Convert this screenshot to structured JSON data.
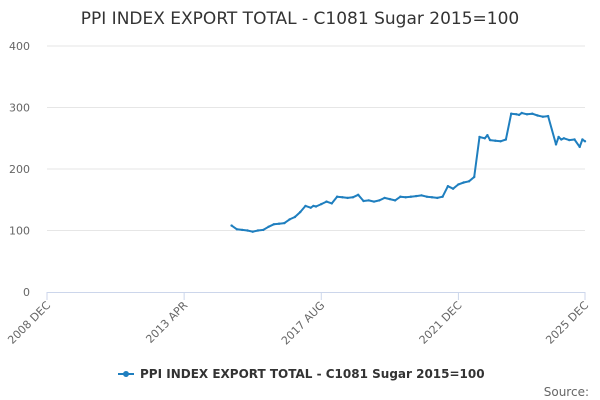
{
  "chart_data": {
    "type": "line",
    "title": "PPI INDEX EXPORT TOTAL - C1081 Sugar 2015=100",
    "xlabel": "",
    "ylabel": "",
    "ylim": [
      0,
      400
    ],
    "yticks": [
      "0",
      "100",
      "200",
      "300",
      "400"
    ],
    "xlim": [
      "2008-12",
      "2025-12"
    ],
    "xticks": [
      {
        "label": "2008 DEC",
        "date": "2008-12"
      },
      {
        "label": "2013 APR",
        "date": "2013-04"
      },
      {
        "label": "2017 AUG",
        "date": "2017-08"
      },
      {
        "label": "2021 DEC",
        "date": "2021-12"
      },
      {
        "label": "2025 DEC",
        "date": "2025-12"
      }
    ],
    "grid": true,
    "legend_position": "bottom",
    "series": [
      {
        "name": "PPI INDEX EXPORT TOTAL - C1081 Sugar 2015=100",
        "color": "#1f7fbf",
        "x": [
          "2014-10",
          "2014-12",
          "2015-02",
          "2015-04",
          "2015-06",
          "2015-08",
          "2015-10",
          "2015-12",
          "2016-02",
          "2016-04",
          "2016-06",
          "2016-08",
          "2016-10",
          "2016-12",
          "2017-02",
          "2017-04",
          "2017-05",
          "2017-06",
          "2017-08",
          "2017-10",
          "2017-12",
          "2018-02",
          "2018-04",
          "2018-06",
          "2018-08",
          "2018-10",
          "2018-12",
          "2019-02",
          "2019-04",
          "2019-06",
          "2019-08",
          "2019-10",
          "2019-12",
          "2020-02",
          "2020-04",
          "2020-06",
          "2020-08",
          "2020-10",
          "2020-12",
          "2021-02",
          "2021-04",
          "2021-06",
          "2021-08",
          "2021-10",
          "2021-12",
          "2022-02",
          "2022-04",
          "2022-06",
          "2022-08",
          "2022-10",
          "2022-11",
          "2022-12",
          "2023-02",
          "2023-04",
          "2023-06",
          "2023-08",
          "2023-10",
          "2023-11",
          "2023-12",
          "2024-02",
          "2024-04",
          "2024-06",
          "2024-08",
          "2024-10",
          "2025-01",
          "2025-02",
          "2025-03",
          "2025-04",
          "2025-06",
          "2025-08",
          "2025-10",
          "2025-11",
          "2025-12"
        ],
        "y": [
          108,
          102,
          101,
          100,
          98,
          100,
          101,
          106,
          110,
          111,
          112,
          118,
          122,
          130,
          140,
          137,
          140,
          139,
          143,
          147,
          144,
          155,
          154,
          153,
          154,
          158,
          148,
          149,
          147,
          149,
          153,
          151,
          149,
          155,
          154,
          155,
          156,
          157,
          155,
          154,
          153,
          155,
          172,
          168,
          175,
          178,
          180,
          187,
          252,
          250,
          255,
          247,
          246,
          245,
          248,
          290,
          289,
          288,
          291,
          289,
          290,
          287,
          285,
          286,
          240,
          252,
          248,
          250,
          247,
          248,
          236,
          248,
          245
        ]
      }
    ]
  },
  "source_label": "Source:"
}
